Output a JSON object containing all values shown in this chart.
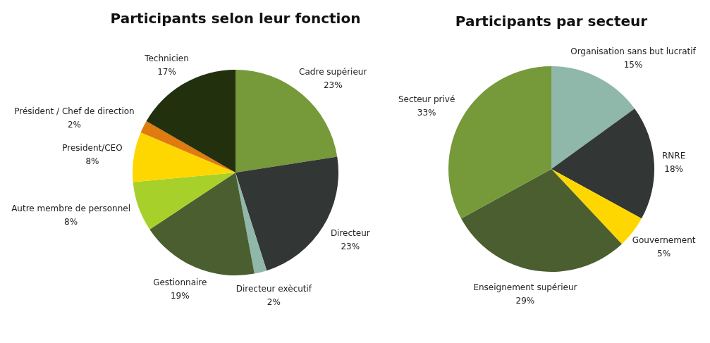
{
  "chart_data": [
    {
      "type": "pie",
      "title": "Participants selon leur fonction",
      "categories": [
        "Cadre supérieur",
        "Directeur",
        "Directeur exècutif",
        "Gestionnaire",
        "Autre membre de personnel",
        "President/CEO",
        "Président / Chef de direction",
        "Technicien"
      ],
      "values": [
        23,
        23,
        2,
        19,
        8,
        8,
        2,
        17
      ],
      "value_labels": [
        "23%",
        "23%",
        "2%",
        "19%",
        "8%",
        "8%",
        "2%",
        "17%"
      ],
      "colors": [
        "#76993a",
        "#323634",
        "#8fb8aa",
        "#4a5e30",
        "#a8d02a",
        "#ffd700",
        "#e07b10",
        "#22300e"
      ]
    },
    {
      "type": "pie",
      "title": "Participants par secteur",
      "categories": [
        "Organisation sans but lucratif",
        "RNRE",
        "Gouvernement",
        "Enseignement supérieur",
        "Secteur privé"
      ],
      "values": [
        15,
        18,
        5,
        29,
        33
      ],
      "value_labels": [
        "15%",
        "18%",
        "5%",
        "29%",
        "33%"
      ],
      "colors": [
        "#8fb8aa",
        "#323634",
        "#ffd700",
        "#4a5e30",
        "#76993a"
      ]
    }
  ]
}
